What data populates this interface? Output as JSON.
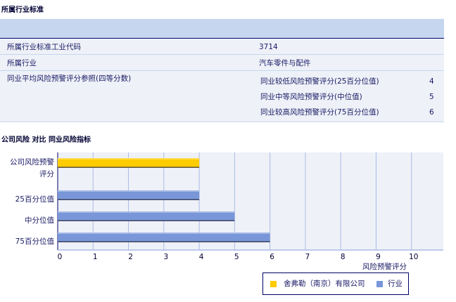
{
  "section1": {
    "title": "所属行业标准",
    "rows": [
      {
        "label": "所属行业标准工业代码",
        "value": "3714"
      },
      {
        "label": "所属行业",
        "value": "汽车零件与配件"
      }
    ],
    "ref": {
      "label": "同业平均风险预警评分参照(四等分数)",
      "items": [
        {
          "label": "同业较低风险预警评分(25百分位值)",
          "value": "4"
        },
        {
          "label": "同业中等风险预警评分(中位值)",
          "value": "5"
        },
        {
          "label": "同业较高风险预警评分(75百分位值)",
          "value": "6"
        }
      ]
    }
  },
  "section2": {
    "title": "公司风险 对比 同业风险指标"
  },
  "chart_data": {
    "type": "bar",
    "orientation": "horizontal",
    "categories": [
      "公司风险预警评分",
      "25百分位值",
      "中分位值",
      "75百分位值"
    ],
    "series": [
      {
        "name": "舍弗勒（南京）有限公司",
        "color": "#ffcc00",
        "values": [
          4,
          null,
          null,
          null
        ]
      },
      {
        "name": "行业",
        "color": "#7896d8",
        "values": [
          null,
          4,
          5,
          6
        ]
      }
    ],
    "xlabel": "风险预警评分",
    "xlim": [
      0,
      10.9
    ],
    "xticks": [
      "0",
      "1",
      "2",
      "3",
      "4",
      "5",
      "6",
      "7",
      "8",
      "9",
      "10"
    ],
    "grid": true,
    "legend": "bottom-right"
  }
}
